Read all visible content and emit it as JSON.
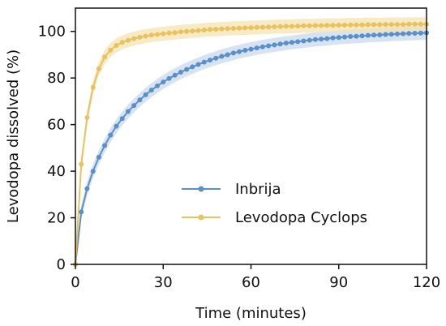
{
  "chart_data": {
    "type": "line",
    "xlabel": "Time (minutes)",
    "ylabel": "Levodopa dissolved (%)",
    "xlim": [
      0,
      120
    ],
    "ylim": [
      0,
      110
    ],
    "x_ticks": [
      0,
      30,
      60,
      90,
      120
    ],
    "y_ticks": [
      0,
      20,
      40,
      60,
      80,
      100
    ],
    "grid": false,
    "legend_position": "center-right",
    "series": [
      {
        "name": "Inbrija",
        "color": "#5b8fc7",
        "band_color": "#c9daef",
        "x": [
          0,
          2,
          4,
          6,
          8,
          10,
          12,
          14,
          16,
          18,
          20,
          22,
          24,
          26,
          28,
          30,
          32,
          34,
          36,
          38,
          40,
          42,
          44,
          46,
          48,
          50,
          52,
          54,
          56,
          58,
          60,
          62,
          64,
          66,
          68,
          70,
          72,
          74,
          76,
          78,
          80,
          82,
          84,
          86,
          88,
          90,
          92,
          94,
          96,
          98,
          100,
          102,
          104,
          106,
          108,
          110,
          112,
          114,
          116,
          118,
          120
        ],
        "y": [
          0,
          22.5,
          32.5,
          40,
          46,
          51,
          55.5,
          59.3,
          62.6,
          65.6,
          68.2,
          70.6,
          72.8,
          74.8,
          76.6,
          78.3,
          79.8,
          81.2,
          82.5,
          83.7,
          84.8,
          85.8,
          86.8,
          87.7,
          88.5,
          89.3,
          90,
          90.7,
          91.3,
          91.9,
          92.4,
          92.9,
          93.4,
          93.8,
          94.2,
          94.6,
          95,
          95.3,
          95.6,
          95.9,
          96.2,
          96.5,
          96.7,
          96.9,
          97.2,
          97.4,
          97.6,
          97.8,
          97.9,
          98.1,
          98.3,
          98.4,
          98.5,
          98.7,
          98.8,
          98.9,
          99,
          99.1,
          99.2,
          99.3,
          99.4
        ],
        "band": 3
      },
      {
        "name": "Levodopa Cyclops",
        "color": "#e8c25e",
        "band_color": "#f5e3b0",
        "x": [
          0,
          2,
          4,
          6,
          8,
          10,
          12,
          14,
          16,
          18,
          20,
          22,
          24,
          26,
          28,
          30,
          32,
          34,
          36,
          38,
          40,
          42,
          44,
          46,
          48,
          50,
          52,
          54,
          56,
          58,
          60,
          62,
          64,
          66,
          68,
          70,
          72,
          74,
          76,
          78,
          80,
          82,
          84,
          86,
          88,
          90,
          92,
          94,
          96,
          98,
          100,
          102,
          104,
          106,
          108,
          110,
          112,
          114,
          116,
          118,
          120
        ],
        "y": [
          0,
          43,
          63,
          76,
          84,
          89,
          92,
          94,
          95.3,
          96.2,
          96.9,
          97.5,
          98,
          98.4,
          98.7,
          99,
          99.3,
          99.5,
          99.8,
          100,
          100.2,
          100.4,
          100.6,
          100.8,
          100.9,
          101.1,
          101.2,
          101.3,
          101.4,
          101.5,
          101.6,
          101.7,
          101.8,
          101.9,
          102,
          102.1,
          102.2,
          102.2,
          102.3,
          102.4,
          102.4,
          102.5,
          102.5,
          102.6,
          102.6,
          102.7,
          102.7,
          102.8,
          102.8,
          102.8,
          102.9,
          102.9,
          102.9,
          103,
          103,
          103,
          103,
          103.1,
          103.1,
          103.1,
          103.1
        ],
        "band": 3
      }
    ]
  }
}
